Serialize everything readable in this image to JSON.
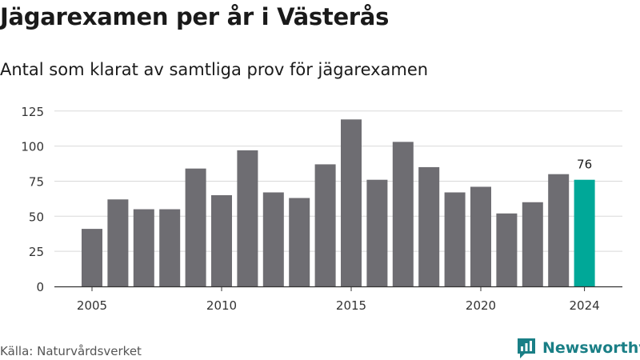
{
  "header": {
    "title": "Jägarexamen per år i Västerås",
    "subtitle": "Antal som klarat av samtliga prov för jägarexamen"
  },
  "footer": {
    "source": "Källa: Naturvårdsverket",
    "brand": "Newsworthy",
    "brand_icon": "bar-chart-speech-bubble-icon"
  },
  "colors": {
    "bar": "#6e6d72",
    "highlight": "#00a898",
    "grid": "#d9d9d9",
    "axis": "#333333",
    "brand": "#1a7f86"
  },
  "chart_data": {
    "type": "bar",
    "categories": [
      "2005",
      "2006",
      "2007",
      "2008",
      "2009",
      "2010",
      "2011",
      "2012",
      "2013",
      "2014",
      "2015",
      "2016",
      "2017",
      "2018",
      "2019",
      "2020",
      "2021",
      "2022",
      "2023",
      "2024"
    ],
    "values": [
      41,
      62,
      55,
      55,
      84,
      65,
      97,
      67,
      63,
      87,
      119,
      76,
      103,
      85,
      67,
      71,
      52,
      60,
      80,
      76
    ],
    "x_tick_labels": [
      "2005",
      "2010",
      "2015",
      "2020",
      "2024"
    ],
    "y_ticks": [
      0,
      25,
      50,
      75,
      100,
      125
    ],
    "ylim": [
      0,
      130
    ],
    "highlight_category": "2024",
    "highlight_label": "76",
    "title": "Jägarexamen per år i Västerås",
    "subtitle": "Antal som klarat av samtliga prov för jägarexamen",
    "xlabel": "",
    "ylabel": "",
    "grid": true,
    "legend": "none"
  }
}
